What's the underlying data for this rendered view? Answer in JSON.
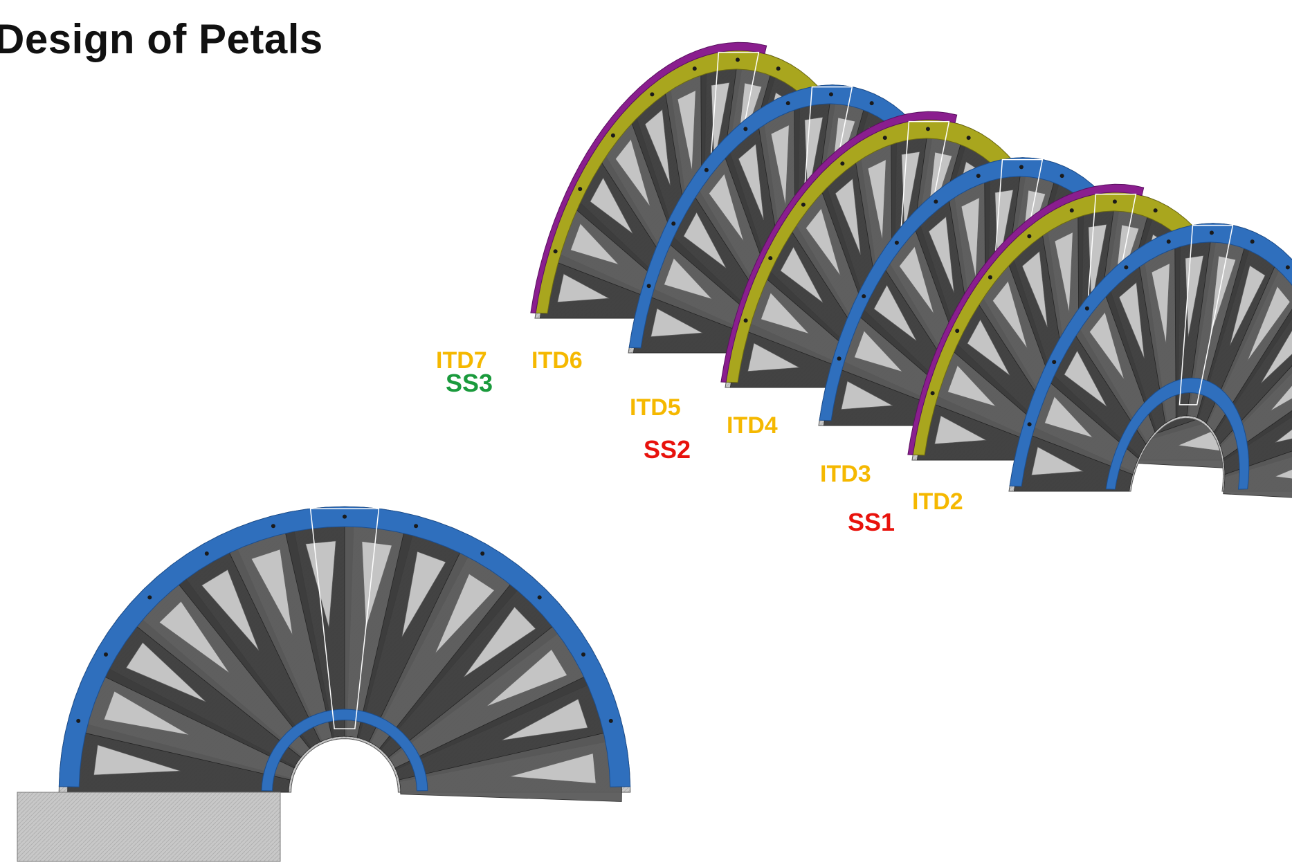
{
  "title": "Design of Petals",
  "colors": {
    "itd_label": "#f5b800",
    "ss_red": "#e8120c",
    "ss_green": "#1a9a3c",
    "ring_blue": "#2f6fbd",
    "ring_yellow": "#a9a61e",
    "ring_magenta": "#8a1e8e",
    "petal_dark": "#3c3c3c",
    "petal_mid": "#5a5a5a",
    "petal_light": "#c4c4c4"
  },
  "disks": [
    {
      "id": "ITD7",
      "ring": "yellow_magenta"
    },
    {
      "id": "ITD6",
      "ring": "blue"
    },
    {
      "id": "ITD5",
      "ring": "yellow_magenta"
    },
    {
      "id": "ITD4",
      "ring": "blue"
    },
    {
      "id": "ITD3",
      "ring": "yellow_magenta"
    },
    {
      "id": "ITD2",
      "ring": "blue"
    }
  ],
  "labels": {
    "itd7": "ITD7",
    "itd6": "ITD6",
    "itd5": "ITD5",
    "itd4": "ITD4",
    "itd3": "ITD3",
    "itd2": "ITD2",
    "ss3": "SS3",
    "ss2": "SS2",
    "ss1": "SS1"
  }
}
